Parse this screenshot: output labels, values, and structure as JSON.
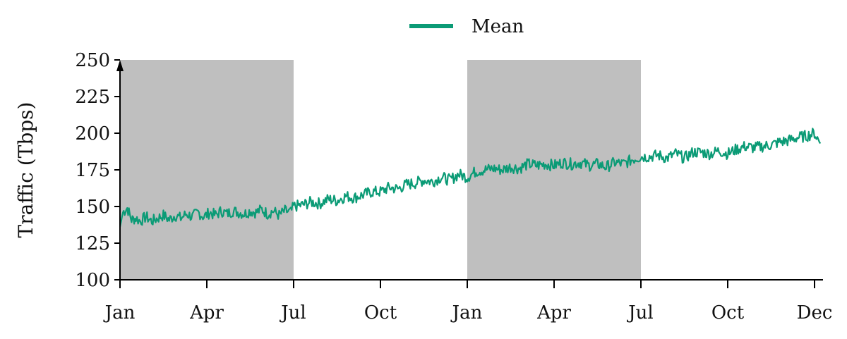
{
  "chart_data": {
    "type": "line",
    "title": "",
    "xlabel": "",
    "ylabel": "Traffic (Tbps)",
    "ylim": [
      100,
      250
    ],
    "yticks": [
      100,
      125,
      150,
      175,
      200,
      225,
      250
    ],
    "xticks": [
      {
        "label": "Jan",
        "month": 0
      },
      {
        "label": "Apr",
        "month": 3
      },
      {
        "label": "Jul",
        "month": 6
      },
      {
        "label": "Oct",
        "month": 9
      },
      {
        "label": "Jan",
        "month": 12
      },
      {
        "label": "Apr",
        "month": 15
      },
      {
        "label": "Jul",
        "month": 18
      },
      {
        "label": "Oct",
        "month": 21
      },
      {
        "label": "Dec",
        "month": 24
      }
    ],
    "xlim_months": [
      0,
      24.2
    ],
    "shaded_periods_months": [
      [
        0,
        6
      ],
      [
        12,
        18
      ]
    ],
    "grid": false,
    "legend_position": "top-center",
    "series": [
      {
        "name": "Mean",
        "color": "#0b9b76",
        "points_month_value": [
          [
            0.0,
            136
          ],
          [
            0.1,
            146
          ],
          [
            0.25,
            149
          ],
          [
            0.4,
            141
          ],
          [
            0.55,
            142
          ],
          [
            0.7,
            140
          ],
          [
            0.9,
            143
          ],
          [
            1.1,
            140
          ],
          [
            1.3,
            142
          ],
          [
            1.5,
            144
          ],
          [
            1.7,
            141
          ],
          [
            1.9,
            144
          ],
          [
            2.1,
            142
          ],
          [
            2.3,
            145
          ],
          [
            2.5,
            143
          ],
          [
            2.7,
            146
          ],
          [
            2.9,
            143
          ],
          [
            3.1,
            146
          ],
          [
            3.3,
            144
          ],
          [
            3.5,
            147
          ],
          [
            3.7,
            145
          ],
          [
            3.9,
            147
          ],
          [
            4.1,
            146
          ],
          [
            4.3,
            145
          ],
          [
            4.5,
            147
          ],
          [
            4.7,
            146
          ],
          [
            4.9,
            148
          ],
          [
            5.1,
            145
          ],
          [
            5.3,
            147
          ],
          [
            5.5,
            144
          ],
          [
            5.7,
            147
          ],
          [
            5.9,
            146
          ],
          [
            6.0,
            150
          ],
          [
            6.3,
            151
          ],
          [
            6.6,
            153
          ],
          [
            6.9,
            152
          ],
          [
            7.2,
            155
          ],
          [
            7.5,
            154
          ],
          [
            7.8,
            157
          ],
          [
            8.1,
            156
          ],
          [
            8.4,
            158
          ],
          [
            8.7,
            160
          ],
          [
            9.0,
            160
          ],
          [
            9.3,
            163
          ],
          [
            9.6,
            162
          ],
          [
            9.9,
            165
          ],
          [
            10.2,
            166
          ],
          [
            10.5,
            168
          ],
          [
            10.8,
            167
          ],
          [
            11.1,
            170
          ],
          [
            11.4,
            168
          ],
          [
            11.7,
            172
          ],
          [
            12.0,
            170
          ],
          [
            12.3,
            174
          ],
          [
            12.6,
            175
          ],
          [
            12.9,
            176
          ],
          [
            13.2,
            175
          ],
          [
            13.5,
            177
          ],
          [
            13.8,
            176
          ],
          [
            14.1,
            179
          ],
          [
            14.4,
            178
          ],
          [
            14.7,
            179
          ],
          [
            15.0,
            178
          ],
          [
            15.3,
            180
          ],
          [
            15.6,
            179
          ],
          [
            15.9,
            180
          ],
          [
            16.2,
            178
          ],
          [
            16.5,
            179
          ],
          [
            16.8,
            177
          ],
          [
            17.1,
            180
          ],
          [
            17.4,
            179
          ],
          [
            17.7,
            182
          ],
          [
            18.0,
            184
          ],
          [
            18.3,
            184
          ],
          [
            18.6,
            185
          ],
          [
            18.9,
            183
          ],
          [
            19.2,
            186
          ],
          [
            19.5,
            183
          ],
          [
            19.8,
            187
          ],
          [
            20.1,
            187
          ],
          [
            20.4,
            186
          ],
          [
            20.7,
            188
          ],
          [
            21.0,
            186
          ],
          [
            21.3,
            189
          ],
          [
            21.6,
            191
          ],
          [
            21.9,
            190
          ],
          [
            22.2,
            191
          ],
          [
            22.5,
            192
          ],
          [
            22.8,
            194
          ],
          [
            23.1,
            195
          ],
          [
            23.4,
            197
          ],
          [
            23.7,
            198
          ],
          [
            24.0,
            200
          ],
          [
            24.2,
            193
          ]
        ]
      }
    ]
  }
}
